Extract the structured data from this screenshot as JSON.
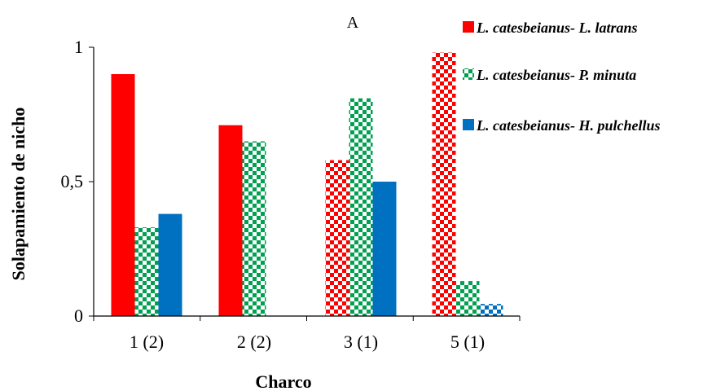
{
  "chart_data": {
    "type": "bar",
    "title": "A",
    "xlabel": "Charco",
    "ylabel": "Solapamiento de nicho",
    "ylim": [
      0,
      1
    ],
    "yticks": [
      "0",
      "0,5",
      "1"
    ],
    "categories": [
      "1 (2)",
      "2 (2)",
      "3 (1)",
      "5 (1)"
    ],
    "grid": false,
    "legend_position": "top-right",
    "series": [
      {
        "name": "L. catesbeianus- L. latrans",
        "color": "#ff0000",
        "values": [
          0.9,
          0.71,
          0.58,
          0.98
        ],
        "pattern": [
          "solid",
          "solid",
          "checker",
          "checker"
        ]
      },
      {
        "name": "L. catesbeianus- P. minuta",
        "color": "#00a050",
        "values": [
          0.33,
          0.65,
          0.81,
          0.13
        ],
        "pattern": [
          "checker",
          "checker",
          "checker",
          "checker"
        ]
      },
      {
        "name": "L. catesbeianus- H. pulchellus",
        "color": "#0070c0",
        "values": [
          0.38,
          0,
          0.5,
          0.045
        ],
        "pattern": [
          "solid",
          "none",
          "solid",
          "checker"
        ]
      }
    ]
  }
}
